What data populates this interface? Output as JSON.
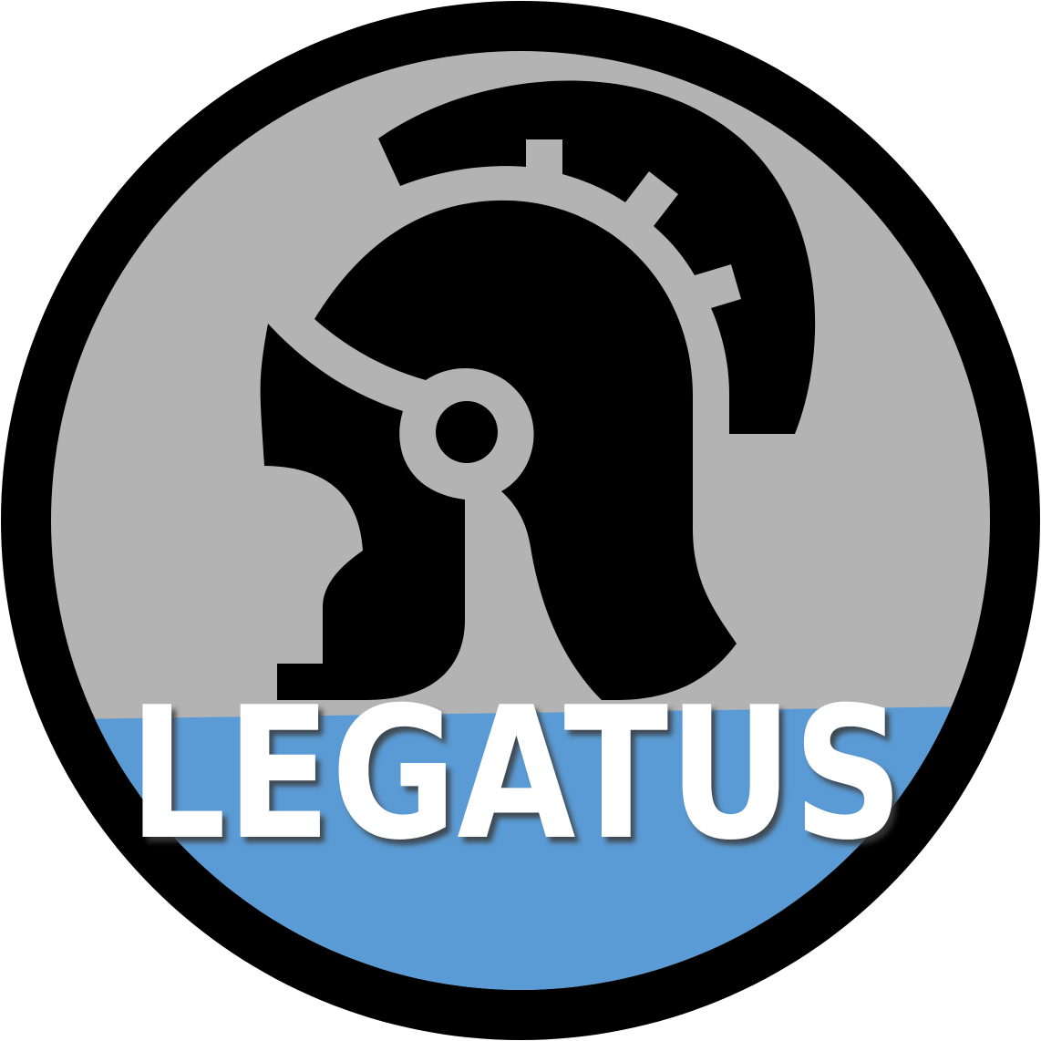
{
  "logo": {
    "wordmark": "LEGATUS",
    "icon": "roman-helmet-icon",
    "colors": {
      "ring": "#000000",
      "upper_field": "#b3b3b3",
      "lower_field": "#5b9bd5",
      "helmet": "#000000",
      "wordmark_fill": "#ffffff",
      "wordmark_shadow": "#3a3a3a"
    }
  }
}
